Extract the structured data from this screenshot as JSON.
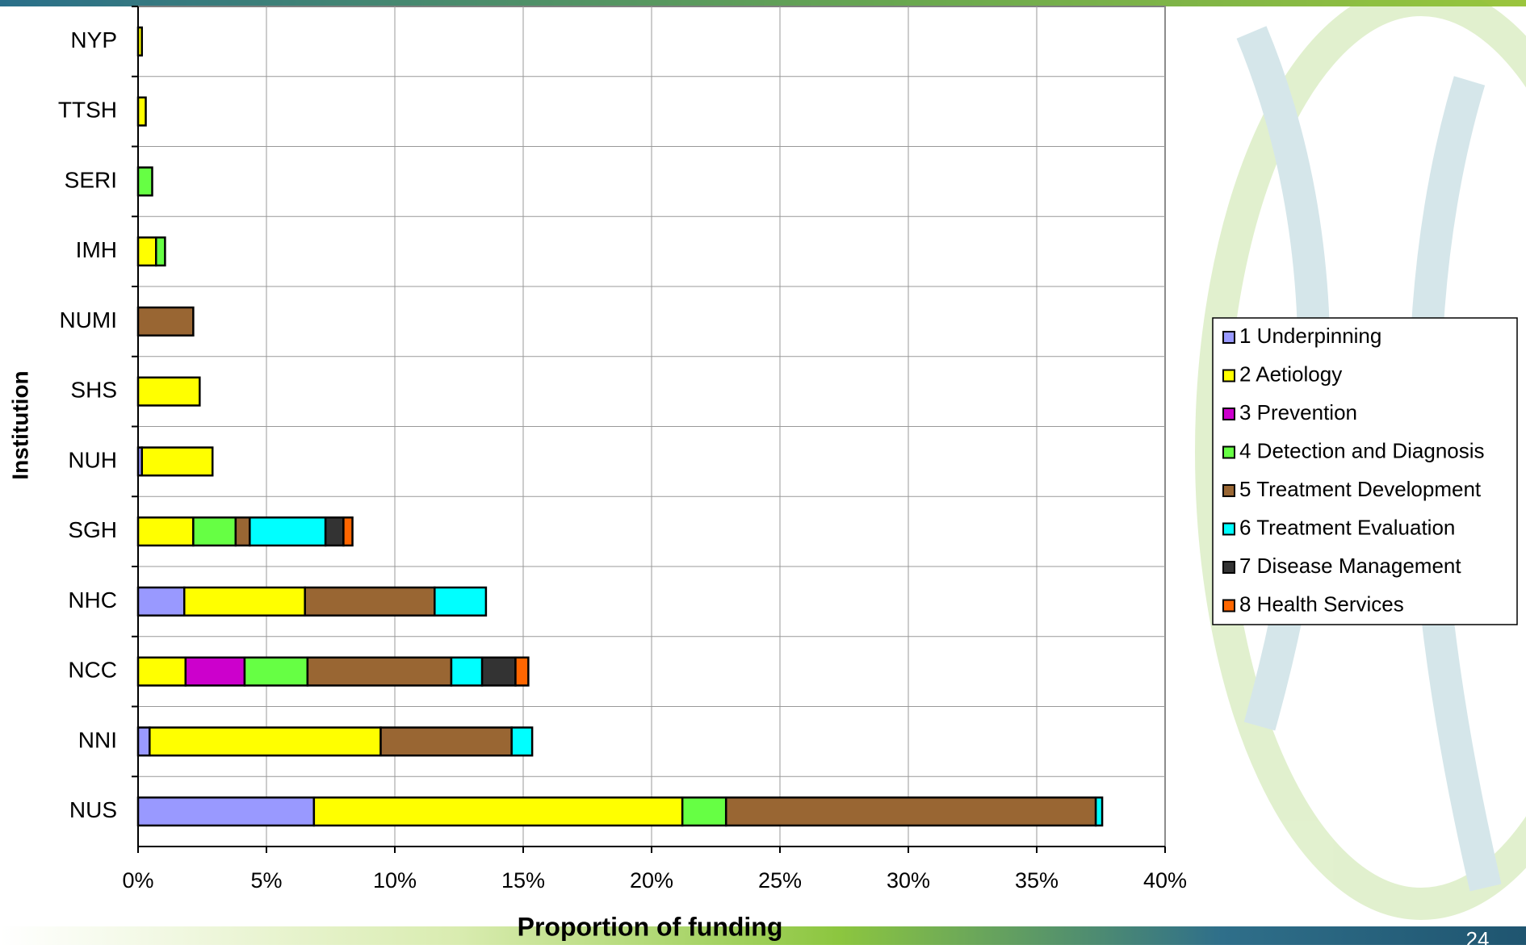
{
  "chart_data": {
    "type": "stacked-bar-horizontal",
    "xlabel": "Proportion of funding",
    "ylabel": "Institution",
    "categories": [
      "NYP",
      "TTSH",
      "SERI",
      "IMH",
      "NUMI",
      "SHS",
      "NUH",
      "SGH",
      "NHC",
      "NCC",
      "NNI",
      "NUS"
    ],
    "series": [
      {
        "name": "1 Underpinning",
        "color": "#9999ff",
        "values": [
          0,
          0,
          0,
          0,
          0,
          0,
          0.15,
          0,
          1.8,
          0,
          0.45,
          6.85
        ]
      },
      {
        "name": "2 Aetiology",
        "color": "#ffff00",
        "values": [
          0.15,
          0.3,
          0,
          0.7,
          0,
          2.4,
          2.75,
          2.15,
          4.7,
          1.85,
          9.0,
          14.35
        ]
      },
      {
        "name": "3 Prevention",
        "color": "#cc00cc",
        "values": [
          0,
          0,
          0,
          0,
          0,
          0,
          0,
          0,
          0,
          2.3,
          0,
          0
        ]
      },
      {
        "name": "4 Detection and Diagnosis",
        "color": "#66ff44",
        "values": [
          0,
          0,
          0.55,
          0.35,
          0,
          0,
          0,
          1.65,
          0,
          2.45,
          0,
          1.7
        ]
      },
      {
        "name": "5 Treatment Development",
        "color": "#996633",
        "values": [
          0,
          0,
          0,
          0,
          2.15,
          0,
          0,
          0.55,
          5.05,
          5.6,
          5.1,
          14.4
        ]
      },
      {
        "name": "6 Treatment Evaluation",
        "color": "#00ffff",
        "values": [
          0,
          0,
          0,
          0,
          0,
          0,
          0,
          2.95,
          2.0,
          1.2,
          0.8,
          0.25
        ]
      },
      {
        "name": "7 Disease Management",
        "color": "#333333",
        "values": [
          0,
          0,
          0,
          0,
          0,
          0,
          0,
          0.7,
          0,
          1.3,
          0,
          0
        ]
      },
      {
        "name": "8 Health Services",
        "color": "#ff6600",
        "values": [
          0,
          0,
          0,
          0,
          0,
          0,
          0,
          0.35,
          0,
          0.5,
          0,
          0
        ]
      }
    ],
    "xlim": [
      0,
      40
    ],
    "xticks": [
      {
        "value": 0,
        "label": "0%"
      },
      {
        "value": 5,
        "label": "5%"
      },
      {
        "value": 10,
        "label": "10%"
      },
      {
        "value": 15,
        "label": "15%"
      },
      {
        "value": 20,
        "label": "20%"
      },
      {
        "value": 25,
        "label": "25%"
      },
      {
        "value": 30,
        "label": "30%"
      },
      {
        "value": 35,
        "label": "35%"
      },
      {
        "value": 40,
        "label": "40%"
      }
    ],
    "grid": true,
    "legend": "right"
  },
  "page_number": "24"
}
